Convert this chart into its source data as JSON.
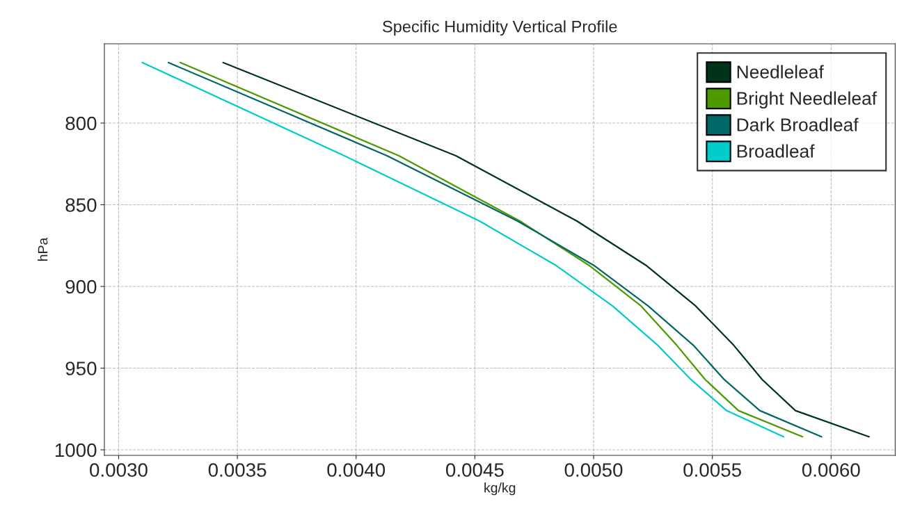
{
  "chart_data": {
    "type": "line",
    "title": "Specific Humidity Vertical Profile",
    "xlabel": "kg/kg",
    "ylabel": "hPa",
    "series": [
      {
        "name": "Needleleaf",
        "color": "#003319",
        "x": [
          0.00344,
          0.00442,
          0.00493,
          0.00522,
          0.00543,
          0.00559,
          0.00571,
          0.00585,
          0.00616
        ],
        "values": [
          763,
          820,
          860,
          887,
          912,
          936,
          957,
          976,
          992
        ]
      },
      {
        "name": "Bright Needleleaf",
        "color": "#4c9900",
        "x": [
          0.00326,
          0.00418,
          0.00469,
          0.00498,
          0.0052,
          0.00535,
          0.00547,
          0.00561,
          0.00588
        ],
        "values": [
          763,
          820,
          860,
          887,
          912,
          936,
          957,
          976,
          992
        ]
      },
      {
        "name": "Dark Broadleaf",
        "color": "#006666",
        "x": [
          0.00321,
          0.00413,
          0.00468,
          0.005,
          0.00523,
          0.00542,
          0.00555,
          0.0057,
          0.00596
        ],
        "values": [
          763,
          820,
          860,
          887,
          912,
          936,
          957,
          976,
          992
        ]
      },
      {
        "name": "Broadleaf",
        "color": "#00cccc",
        "x": [
          0.0031,
          0.00395,
          0.00452,
          0.00484,
          0.00508,
          0.00527,
          0.00541,
          0.00556,
          0.0058
        ],
        "values": [
          763,
          820,
          860,
          887,
          912,
          936,
          957,
          976,
          992
        ]
      }
    ],
    "xlim": [
      0.00294,
      0.00627
    ],
    "ylim": [
      1003.4,
      751.5
    ],
    "xticks": [
      {
        "value": 0.003,
        "label": "0.0030"
      },
      {
        "value": 0.0035,
        "label": "0.0035"
      },
      {
        "value": 0.004,
        "label": "0.0040"
      },
      {
        "value": 0.0045,
        "label": "0.0045"
      },
      {
        "value": 0.005,
        "label": "0.0050"
      },
      {
        "value": 0.0055,
        "label": "0.0055"
      },
      {
        "value": 0.006,
        "label": "0.0060"
      }
    ],
    "yticks": [
      800,
      850,
      900,
      950,
      1000
    ],
    "grid": true,
    "legend": "top right",
    "line_style": "solid",
    "marker": "none"
  }
}
